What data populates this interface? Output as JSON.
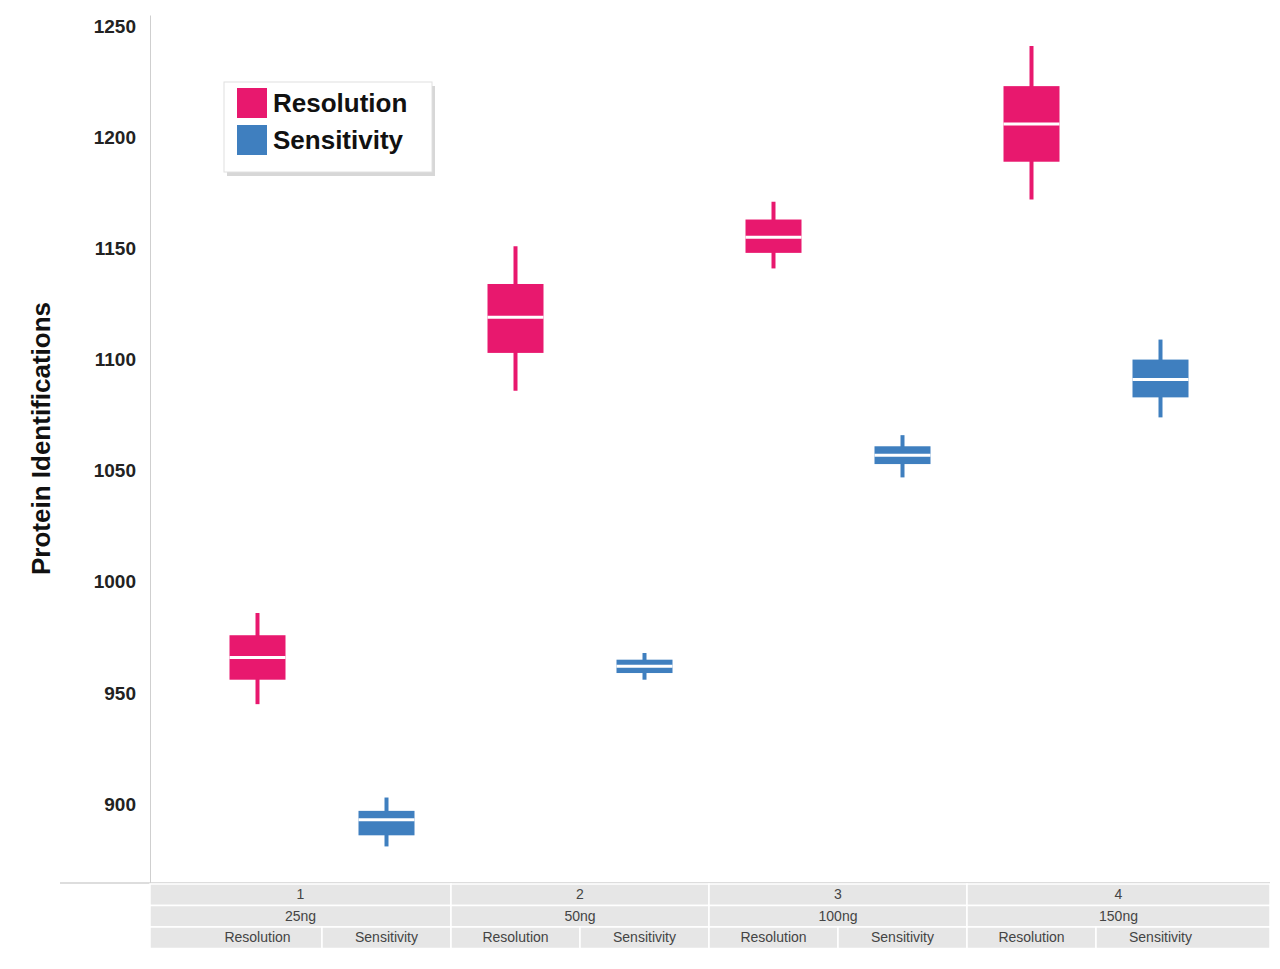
{
  "chart_data": {
    "type": "box",
    "y_label": "Protein Identifications",
    "categories": [
      "1",
      "2",
      "3",
      "4"
    ],
    "subcategories": [
      "25ng",
      "50ng",
      "100ng",
      "150ng"
    ],
    "series": [
      {
        "name": "Resolution",
        "color": "#e8186e",
        "min": [
          945,
          1086,
          1141,
          1172
        ],
        "q1": [
          956,
          1103,
          1148,
          1189
        ],
        "median": [
          966,
          1119,
          1155,
          1206
        ],
        "q3": [
          976,
          1134,
          1163,
          1223
        ],
        "max": [
          986,
          1151,
          1171,
          1241
        ]
      },
      {
        "name": "Sensitivity",
        "color": "#3f7fbf",
        "min": [
          881,
          956,
          1047,
          1074
        ],
        "q1": [
          886,
          959,
          1053,
          1083
        ],
        "median": [
          893,
          962,
          1057,
          1091
        ],
        "q3": [
          897,
          965,
          1061,
          1100
        ],
        "max": [
          903,
          968,
          1066,
          1109
        ]
      }
    ],
    "ylim": [
      865,
      1255
    ],
    "yticks": [
      900,
      950,
      1000,
      1050,
      1100,
      1150,
      1200,
      1250
    ],
    "legend": "upper left",
    "grid": false
  }
}
